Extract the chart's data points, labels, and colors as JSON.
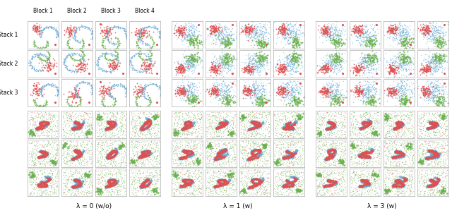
{
  "block_labels": [
    "Block 1",
    "Block 2",
    "Block 3",
    "Block 4"
  ],
  "stack_labels": [
    "Stack 1",
    "Stack 2",
    "Stack 3"
  ],
  "lambda_labels": [
    "λ = 0 (w/o)",
    "λ = 1 (w)",
    "λ = 3 (w)"
  ],
  "n_cols": 4,
  "n_groups": 3,
  "n_rows": 6,
  "colors": {
    "red": "#e05050",
    "blue": "#6aaad4",
    "green": "#6ab04c",
    "border": "#999999"
  },
  "figsize": [
    6.4,
    3.02
  ],
  "dpi": 100
}
